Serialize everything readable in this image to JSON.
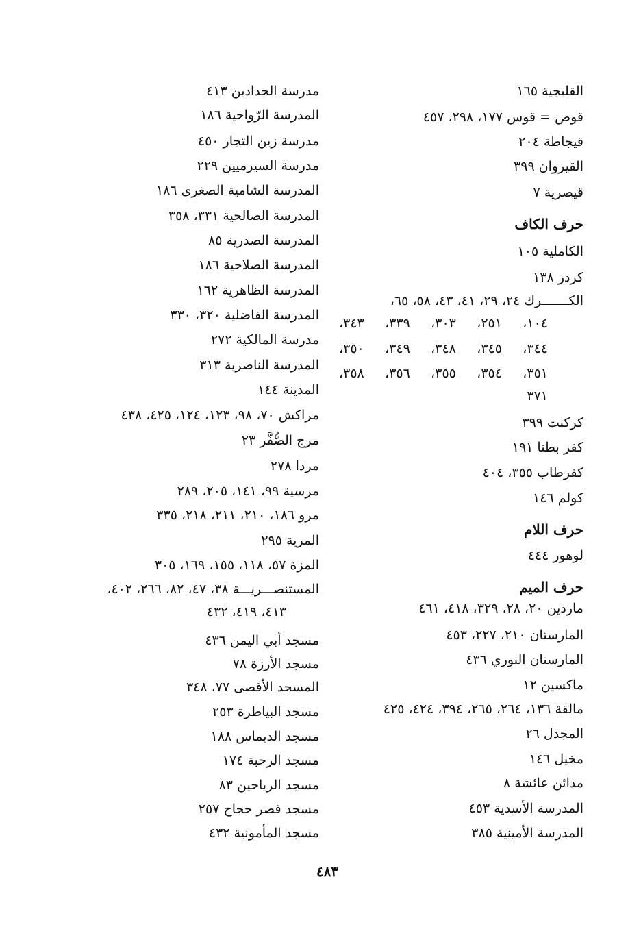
{
  "right_column": [
    {
      "text": "القليجية ١٦٥"
    },
    {
      "text": "قوص = قوس ١٧٧، ٢٩٨، ٤٥٧"
    },
    {
      "text": "قيجاطة ٢٠٤"
    },
    {
      "text": "القيروان ٣٩٩"
    },
    {
      "text": "قيصرية ٧"
    },
    {
      "heading": "حرف الكاف"
    },
    {
      "text": "الكاملية ١٠٥"
    },
    {
      "text": "كردر ١٣٨"
    },
    {
      "text": "الكـــــــرك ٢٤، ٢٩، ٤١، ٤٣، ٥٨، ٦٥،"
    },
    {
      "cont": "١٠٤، ٢٥١، ٣٠٣، ٣٣٩، ٣٤٣،"
    },
    {
      "cont": "٣٤٤، ٣٤٥، ٣٤٨، ٣٤٩، ٣٥٠،"
    },
    {
      "cont": "٣٥١، ٣٥٤، ٣٥٥، ٣٥٦، ٣٥٨،"
    },
    {
      "cont_short": "٣٧١"
    },
    {
      "text": "كركنت ٣٩٩"
    },
    {
      "text": "كفر بطنا ١٩١"
    },
    {
      "text": "كفرطاب ٣٥٥، ٤٠٤"
    },
    {
      "text": "كولم ١٤٦"
    },
    {
      "heading": "حرف اللام"
    },
    {
      "text": "لوهور ٤٤٤"
    },
    {
      "heading": "حرف الميم"
    },
    {
      "text": "ماردين ٢٠، ٢٨، ٣٢٩، ٤١٨، ٤٦١"
    },
    {
      "text": "المارستان ٢١٠، ٢٢٧، ٤٥٣"
    },
    {
      "text": "المارستان النوري ٤٣٦"
    },
    {
      "text": "ماكسين ١٢"
    },
    {
      "text": "مالقة ١٣٦، ٢٦٤، ٢٦٥، ٣٩٤، ٤٢٤، ٤٢٥"
    },
    {
      "text": "المجدل ٢٦"
    },
    {
      "text": "مخيل ١٤٦"
    },
    {
      "text": "مدائن عائشة ٨"
    },
    {
      "text": "المدرسة الأسدية ٤٥٣"
    },
    {
      "text": "المدرسة الأمينية ٣٨٥"
    }
  ],
  "left_column": [
    {
      "text": "مدرسة الحدادين ٤١٣"
    },
    {
      "text": "المدرسة الرّواحية ١٨٦"
    },
    {
      "text": "مدرسة زين التجار ٤٥٠"
    },
    {
      "text": "مدرسة السيرميين ٢٢٩"
    },
    {
      "text": "المدرسة الشامية الصغرى ١٨٦"
    },
    {
      "text": "المدرسة الصالحية ٣٣١، ٣٥٨"
    },
    {
      "text": "المدرسة الصدرية ٨٥"
    },
    {
      "text": "المدرسة الصلاحية ١٨٦"
    },
    {
      "text": "المدرسة الظاهرية ١٦٢"
    },
    {
      "text": "المدرسة الفاضلية ٣٢٠، ٣٣٠"
    },
    {
      "text": "مدرسة المالكية ٢٧٢"
    },
    {
      "text": "المدرسة الناصرية ٣١٣"
    },
    {
      "text": "المدينة ١٤٤"
    },
    {
      "text": "مراكش ٧٠، ٩٨، ١٢٣، ١٢٤، ٤٢٥، ٤٣٨"
    },
    {
      "text": "مرج الصُّفَّر ٢٣"
    },
    {
      "text": "مردا ٢٧٨"
    },
    {
      "text": "مرسية ٩٩، ١٤١، ٢٠٥، ٢٨٩"
    },
    {
      "text": "مرو ١٨٦، ٢١٠، ٢١١، ٢١٨، ٣٣٥"
    },
    {
      "text": "المرية ٢٩٥"
    },
    {
      "text": "المزة ٥٧، ١١٨، ١٥٥، ١٦٩، ٣٠٥"
    },
    {
      "text": "المستنصـــريـــة ٣٨، ٤٧، ٨٢، ٢٦٦، ٤٠٢،"
    },
    {
      "cont_short": "٤١٣، ٤١٩، ٤٣٢"
    },
    {
      "text": "مسجد أبي اليمن ٤٣٦"
    },
    {
      "text": "مسجد الأرزة ٧٨"
    },
    {
      "text": "المسجد الأقصى ٧٧، ٣٤٨"
    },
    {
      "text": "مسجد البياطرة ٢٥٣"
    },
    {
      "text": "مسجد الديماس ١٨٨"
    },
    {
      "text": "مسجد الرحبة ١٧٤"
    },
    {
      "text": "مسجد الرياحين ٨٣"
    },
    {
      "text": "مسجد قصر حجاج ٢٥٧"
    },
    {
      "text": "مسجد المأمونية ٤٣٢"
    }
  ],
  "page_number": "٤٨٣"
}
